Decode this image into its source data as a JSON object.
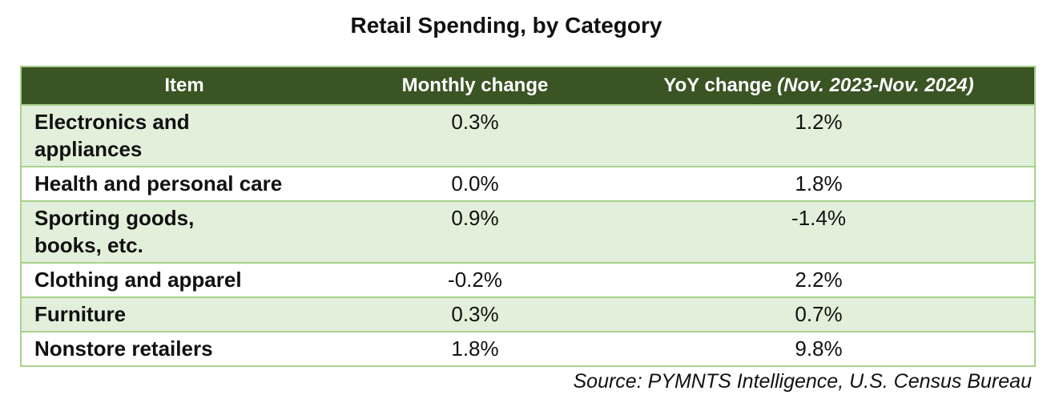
{
  "title": "Retail Spending, by Category",
  "headers": {
    "item": "Item",
    "monthly": "Monthly change",
    "yoy": "YoY change",
    "yoy_range": "(Nov. 2023-Nov. 2024)"
  },
  "rows": [
    {
      "item": "Electronics and appliances",
      "monthly": "0.3%",
      "yoy": "1.2%"
    },
    {
      "item": "Health and personal care",
      "monthly": "0.0%",
      "yoy": "1.8%"
    },
    {
      "item": "Sporting goods, books, etc.",
      "monthly": "0.9%",
      "yoy": "-1.4%"
    },
    {
      "item": "Clothing and apparel",
      "monthly": "-0.2%",
      "yoy": "2.2%"
    },
    {
      "item": "Furniture",
      "monthly": "0.3%",
      "yoy": "0.7%"
    },
    {
      "item": "Nonstore retailers",
      "monthly": "1.8%",
      "yoy": "9.8%"
    }
  ],
  "source": "Source: PYMNTS Intelligence, U.S. Census Bureau",
  "colors": {
    "header": "#3a5424",
    "shade": "#e2efda",
    "border": "#a9d18e"
  }
}
